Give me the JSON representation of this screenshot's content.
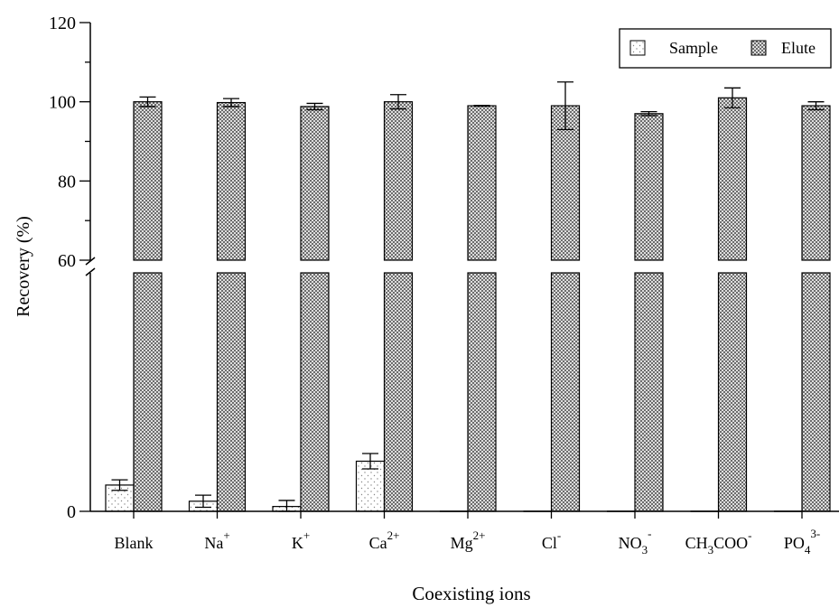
{
  "chart_data": {
    "type": "bar",
    "xlabel": "Coexisting ions",
    "ylabel": "Recovery (%)",
    "categories": [
      {
        "base": "Blank",
        "sub": "",
        "sup": "",
        "tail": ""
      },
      {
        "base": "Na",
        "sub": "",
        "sup": "+",
        "tail": ""
      },
      {
        "base": "K",
        "sub": "",
        "sup": "+",
        "tail": ""
      },
      {
        "base": "Ca",
        "sub": "",
        "sup": "2+",
        "tail": ""
      },
      {
        "base": "Mg",
        "sub": "",
        "sup": "2+",
        "tail": ""
      },
      {
        "base": "Cl",
        "sub": "",
        "sup": "-",
        "tail": ""
      },
      {
        "base": "NO",
        "sub": "3",
        "sup": "-",
        "tail": ""
      },
      {
        "base": "CH",
        "sub": "3",
        "sup": "-",
        "tail": "COO",
        "sup_after_tail": true
      },
      {
        "base": "PO",
        "sub": "4",
        "sup": "3-",
        "tail": ""
      }
    ],
    "series": [
      {
        "name": "Sample",
        "pattern": "dots",
        "values": [
          6.5,
          2.5,
          1.2,
          12.4,
          0,
          0,
          0,
          0,
          0
        ],
        "errors": [
          1.3,
          1.5,
          1.5,
          1.9,
          0,
          0,
          0,
          0,
          0
        ]
      },
      {
        "name": "Elute",
        "pattern": "crosshatch",
        "values": [
          100.0,
          99.8,
          98.8,
          100.0,
          99.0,
          99.0,
          97.0,
          101.0,
          99.0
        ],
        "errors": [
          1.2,
          1.0,
          0.8,
          1.8,
          0.1,
          6.0,
          0.5,
          2.5,
          1.0
        ]
      }
    ],
    "y_axis": {
      "break": true,
      "upper_segment": {
        "min": 60,
        "max": 120,
        "ticks": [
          60,
          80,
          100,
          120
        ]
      },
      "lower_segment": {
        "min": 0,
        "max": 60,
        "ticks": [
          0
        ],
        "display_max": 59
      },
      "tick_labels": [
        "0",
        "60",
        "80",
        "100",
        "120"
      ]
    },
    "legend": {
      "position": "top-right",
      "entries": [
        "Sample",
        "Elute"
      ]
    },
    "grid": false,
    "colors": {
      "axis": "#000000",
      "bar_fill": "#ffffff",
      "pattern": "#555555",
      "dots": "#888888"
    }
  }
}
